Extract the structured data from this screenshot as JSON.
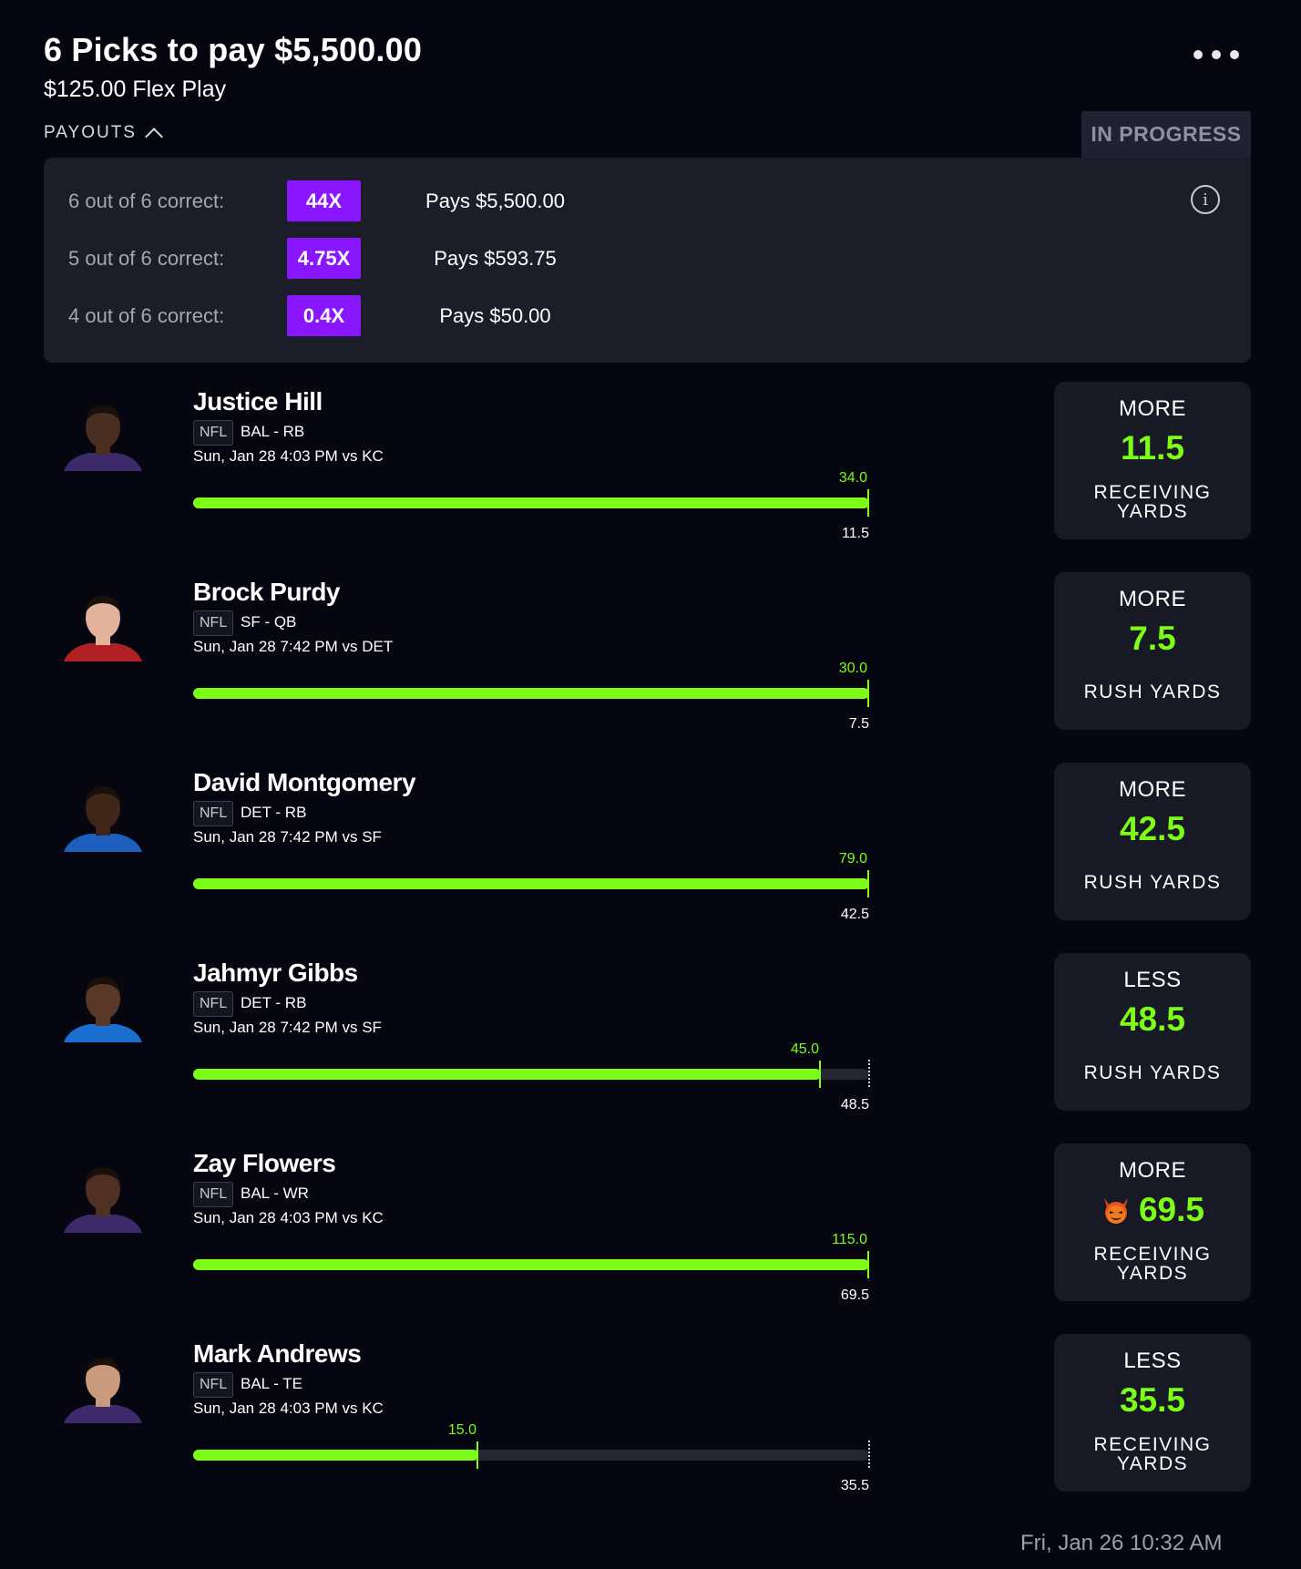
{
  "header": {
    "title": "6 Picks to pay $5,500.00",
    "subtitle": "$125.00 Flex Play",
    "payouts_label": "PAYOUTS",
    "status": "IN PROGRESS"
  },
  "payouts": [
    {
      "label": "6 out of 6 correct:",
      "multiplier": "44X",
      "pays": "Pays $5,500.00"
    },
    {
      "label": "5 out of 6 correct:",
      "multiplier": "4.75X",
      "pays": "Pays $593.75"
    },
    {
      "label": "4 out of 6 correct:",
      "multiplier": "0.4X",
      "pays": "Pays $50.00"
    }
  ],
  "picks": [
    {
      "name": "Justice Hill",
      "league": "NFL",
      "team_pos": "BAL - RB",
      "game": "Sun, Jan 28 4:03 PM  vs KC",
      "actual": "34.0",
      "line": "11.5",
      "progress_pct": 100,
      "direction": "MORE",
      "stat_line": "11.5",
      "stat_name_1": "RECEIVING",
      "stat_name_2": "YARDS",
      "stat_name": "",
      "jersey": "#3d2a6b",
      "skin": "#4a2e22"
    },
    {
      "name": "Brock Purdy",
      "league": "NFL",
      "team_pos": "SF - QB",
      "game": "Sun, Jan 28 7:42 PM  vs DET",
      "actual": "30.0",
      "line": "7.5",
      "progress_pct": 100,
      "direction": "MORE",
      "stat_line": "7.5",
      "stat_name": "RUSH YARDS",
      "stat_name_1": "",
      "stat_name_2": "",
      "jersey": "#b01f24",
      "skin": "#e2b29a"
    },
    {
      "name": "David Montgomery",
      "league": "NFL",
      "team_pos": "DET - RB",
      "game": "Sun, Jan 28 7:42 PM  vs SF",
      "actual": "79.0",
      "line": "42.5",
      "progress_pct": 100,
      "direction": "MORE",
      "stat_line": "42.5",
      "stat_name": "RUSH YARDS",
      "stat_name_1": "",
      "stat_name_2": "",
      "jersey": "#1c5fbf",
      "skin": "#3f2619"
    },
    {
      "name": "Jahmyr Gibbs",
      "league": "NFL",
      "team_pos": "DET - RB",
      "game": "Sun, Jan 28 7:42 PM  vs SF",
      "actual": "45.0",
      "line": "48.5",
      "progress_pct": 92.8,
      "direction": "LESS",
      "stat_line": "48.5",
      "stat_name": "RUSH YARDS",
      "stat_name_1": "",
      "stat_name_2": "",
      "jersey": "#1c6fd1",
      "skin": "#5a3828"
    },
    {
      "name": "Zay Flowers",
      "league": "NFL",
      "team_pos": "BAL - WR",
      "game": "Sun, Jan 28 4:03 PM  vs KC",
      "actual": "115.0",
      "line": "69.5",
      "progress_pct": 100,
      "direction": "MORE",
      "stat_line": "69.5",
      "stat_name_1": "RECEIVING",
      "stat_name_2": "YARDS",
      "stat_name": "",
      "demon": true,
      "jersey": "#3d2a6b",
      "skin": "#4f3022"
    },
    {
      "name": "Mark Andrews",
      "league": "NFL",
      "team_pos": "BAL - TE",
      "game": "Sun, Jan 28 4:03 PM  vs KC",
      "actual": "15.0",
      "line": "35.5",
      "progress_pct": 42.25,
      "direction": "LESS",
      "stat_line": "35.5",
      "stat_name_1": "RECEIVING",
      "stat_name_2": "YARDS",
      "stat_name": "",
      "jersey": "#3d2a6b",
      "skin": "#c99a7e"
    }
  ],
  "footer": {
    "timestamp": "Fri, Jan 26 10:32 AM"
  },
  "colors": {
    "accent_green": "#7cfc16",
    "badge_purple": "#8a16ff",
    "background": "#05060f"
  }
}
